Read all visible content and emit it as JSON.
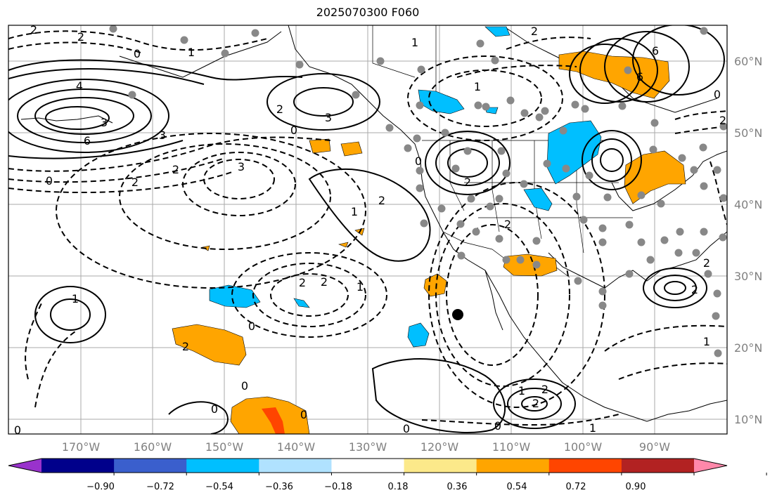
{
  "title": "2025070300 F060",
  "lat_labels": [
    "60°N",
    "50°N",
    "40°N",
    "30°N",
    "20°N",
    "10°N"
  ],
  "lon_labels": [
    "170°W",
    "160°W",
    "150°W",
    "140°W",
    "130°W",
    "120°W",
    "110°W",
    "100°W",
    "90°W"
  ],
  "colorbar": {
    "colors": [
      "#9932cc",
      "#00008b",
      "#3a5fcd",
      "#00bfff",
      "#b0e2ff",
      "#ffffff",
      "#fce98a",
      "#ffa500",
      "#ff4500",
      "#b22222",
      "#ff88aa"
    ],
    "ticks": [
      "−0.90",
      "−0.72",
      "−0.54",
      "−0.36",
      "−0.18",
      "0.18",
      "0.36",
      "0.54",
      "0.72",
      "0.90"
    ]
  },
  "contour_labels": [
    "2",
    "2",
    "0",
    "1",
    "4",
    "3",
    "6",
    "6",
    "0",
    "2",
    "3",
    "0",
    "3",
    "2",
    "2",
    "0",
    "3",
    "1",
    "2",
    "1",
    "1",
    "2",
    "0",
    "2",
    "6",
    "2",
    "2",
    "0",
    "1",
    "2",
    "2",
    "0",
    "2",
    "1",
    "0",
    "1",
    "0",
    "1",
    "2",
    "2",
    "0",
    "0",
    "0",
    "1",
    "2",
    "2"
  ]
}
